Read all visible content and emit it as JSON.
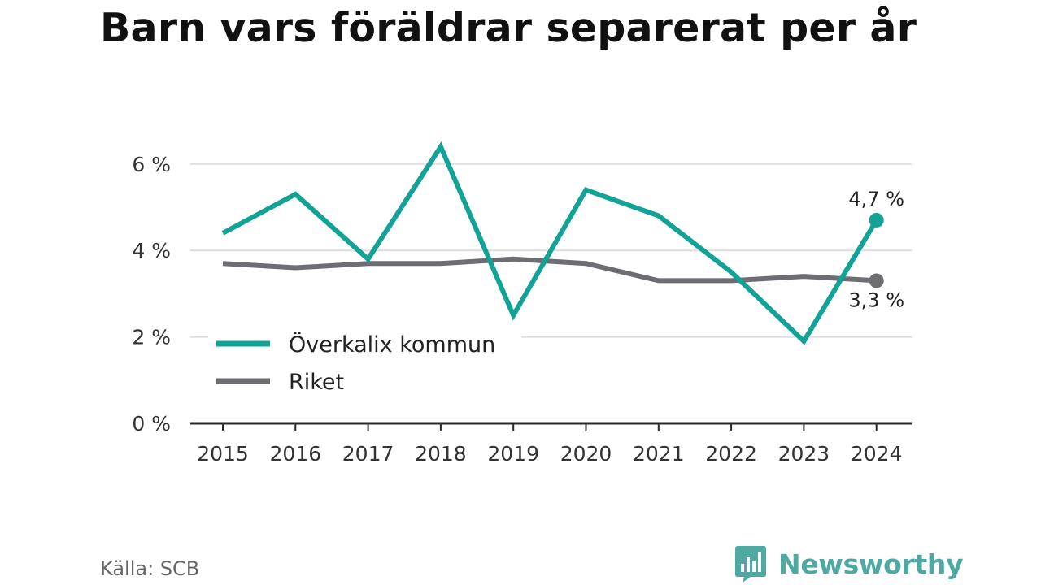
{
  "title": "Barn vars föräldrar separerat per år",
  "source": "Källa: SCB",
  "brand": {
    "name": "Newsworthy",
    "color": "#4fa9a3",
    "logo_icon": "bar-chart-speech-bubble-icon"
  },
  "chart_data": {
    "type": "line",
    "title": "Barn vars föräldrar separerat per år",
    "xlabel": "",
    "ylabel": "",
    "x": [
      "2015",
      "2016",
      "2017",
      "2018",
      "2019",
      "2020",
      "2021",
      "2022",
      "2023",
      "2024"
    ],
    "ylim": [
      0,
      7
    ],
    "yticks": [
      {
        "value": 0,
        "label": "0 %"
      },
      {
        "value": 2,
        "label": "2 %"
      },
      {
        "value": 4,
        "label": "4 %"
      },
      {
        "value": 6,
        "label": "6 %"
      }
    ],
    "grid": true,
    "legend_position": "bottom-left",
    "series": [
      {
        "name": "Överkalix kommun",
        "color": "#12a396",
        "values": [
          4.4,
          5.3,
          3.8,
          6.4,
          2.5,
          5.4,
          4.8,
          3.5,
          1.9,
          4.7
        ],
        "end_label": "4,7 %"
      },
      {
        "name": "Riket",
        "color": "#6e6d73",
        "values": [
          3.7,
          3.6,
          3.7,
          3.7,
          3.8,
          3.7,
          3.3,
          3.3,
          3.4,
          3.3
        ],
        "end_label": "3,3 %"
      }
    ]
  }
}
